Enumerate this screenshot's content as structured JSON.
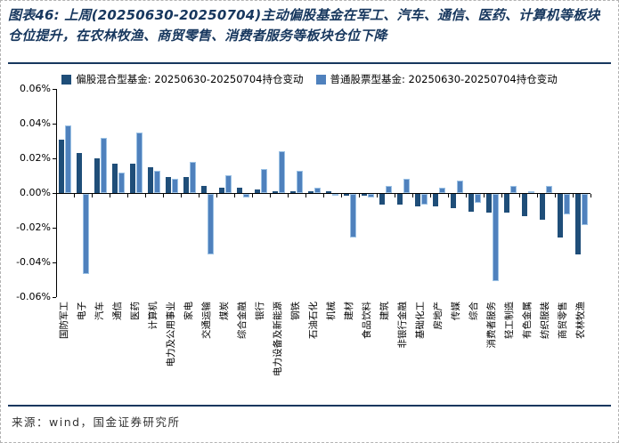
{
  "figure": {
    "title": "图表46: 上周(20250630-20250704)主动偏股基金在军工、汽车、通信、医药、计算机等板块仓位提升，在农林牧渔、商贸零售、消费者服务等板块仓位下降",
    "source": "来源：wind，国金证券研究所"
  },
  "colors": {
    "title_navy": "#17375e",
    "rule_navy": "#17375e",
    "dark_series": "#1f4e79",
    "light_series": "#4f81bd",
    "light_series_edge": "#9cc2e5",
    "axis": "#000000"
  },
  "chart_data": {
    "type": "bar",
    "unit": "%",
    "grid": false,
    "legend_position": "top",
    "ylim": [
      -0.06,
      0.06
    ],
    "ytick_step": 0.02,
    "ytick_labels": [
      "0.06%",
      "0.04%",
      "0.02%",
      "0.00%",
      "-0.02%",
      "-0.04%",
      "-0.06%"
    ],
    "categories": [
      "国防军工",
      "电子",
      "汽车",
      "通信",
      "医药",
      "计算机",
      "电力及公用事业",
      "家电",
      "交通运输",
      "煤炭",
      "综合金融",
      "银行",
      "电力设备及新能源",
      "钢铁",
      "石油石化",
      "机械",
      "建材",
      "食品饮料",
      "建筑",
      "非银行金融",
      "基础化工",
      "房地产",
      "传媒",
      "综合",
      "消费者服务",
      "轻工制造",
      "有色金属",
      "纺织服装",
      "商贸零售",
      "农林牧渔"
    ],
    "series": [
      {
        "name": "偏股混合型基金: 20250630-20250704持仓变动",
        "color": "#1f4e79",
        "values": [
          0.031,
          0.023,
          0.02,
          0.017,
          0.017,
          0.015,
          0.009,
          0.009,
          0.004,
          0.003,
          0.003,
          0.002,
          0.001,
          0.001,
          0.001,
          0.001,
          -0.001,
          -0.001,
          -0.006,
          -0.006,
          -0.007,
          -0.007,
          -0.008,
          -0.01,
          -0.011,
          -0.011,
          -0.013,
          -0.015,
          -0.025,
          -0.035
        ]
      },
      {
        "name": "普通股票型基金: 20250630-20250704持仓变动",
        "color": "#4f81bd",
        "values": [
          0.039,
          -0.046,
          0.032,
          0.012,
          0.035,
          0.013,
          0.008,
          0.018,
          -0.035,
          0.01,
          -0.002,
          0.014,
          0.024,
          0.013,
          0.003,
          -0.001,
          -0.025,
          -0.002,
          0.004,
          0.008,
          -0.006,
          0.003,
          0.007,
          -0.005,
          -0.05,
          0.004,
          0.001,
          0.004,
          -0.012,
          -0.018
        ]
      }
    ]
  }
}
